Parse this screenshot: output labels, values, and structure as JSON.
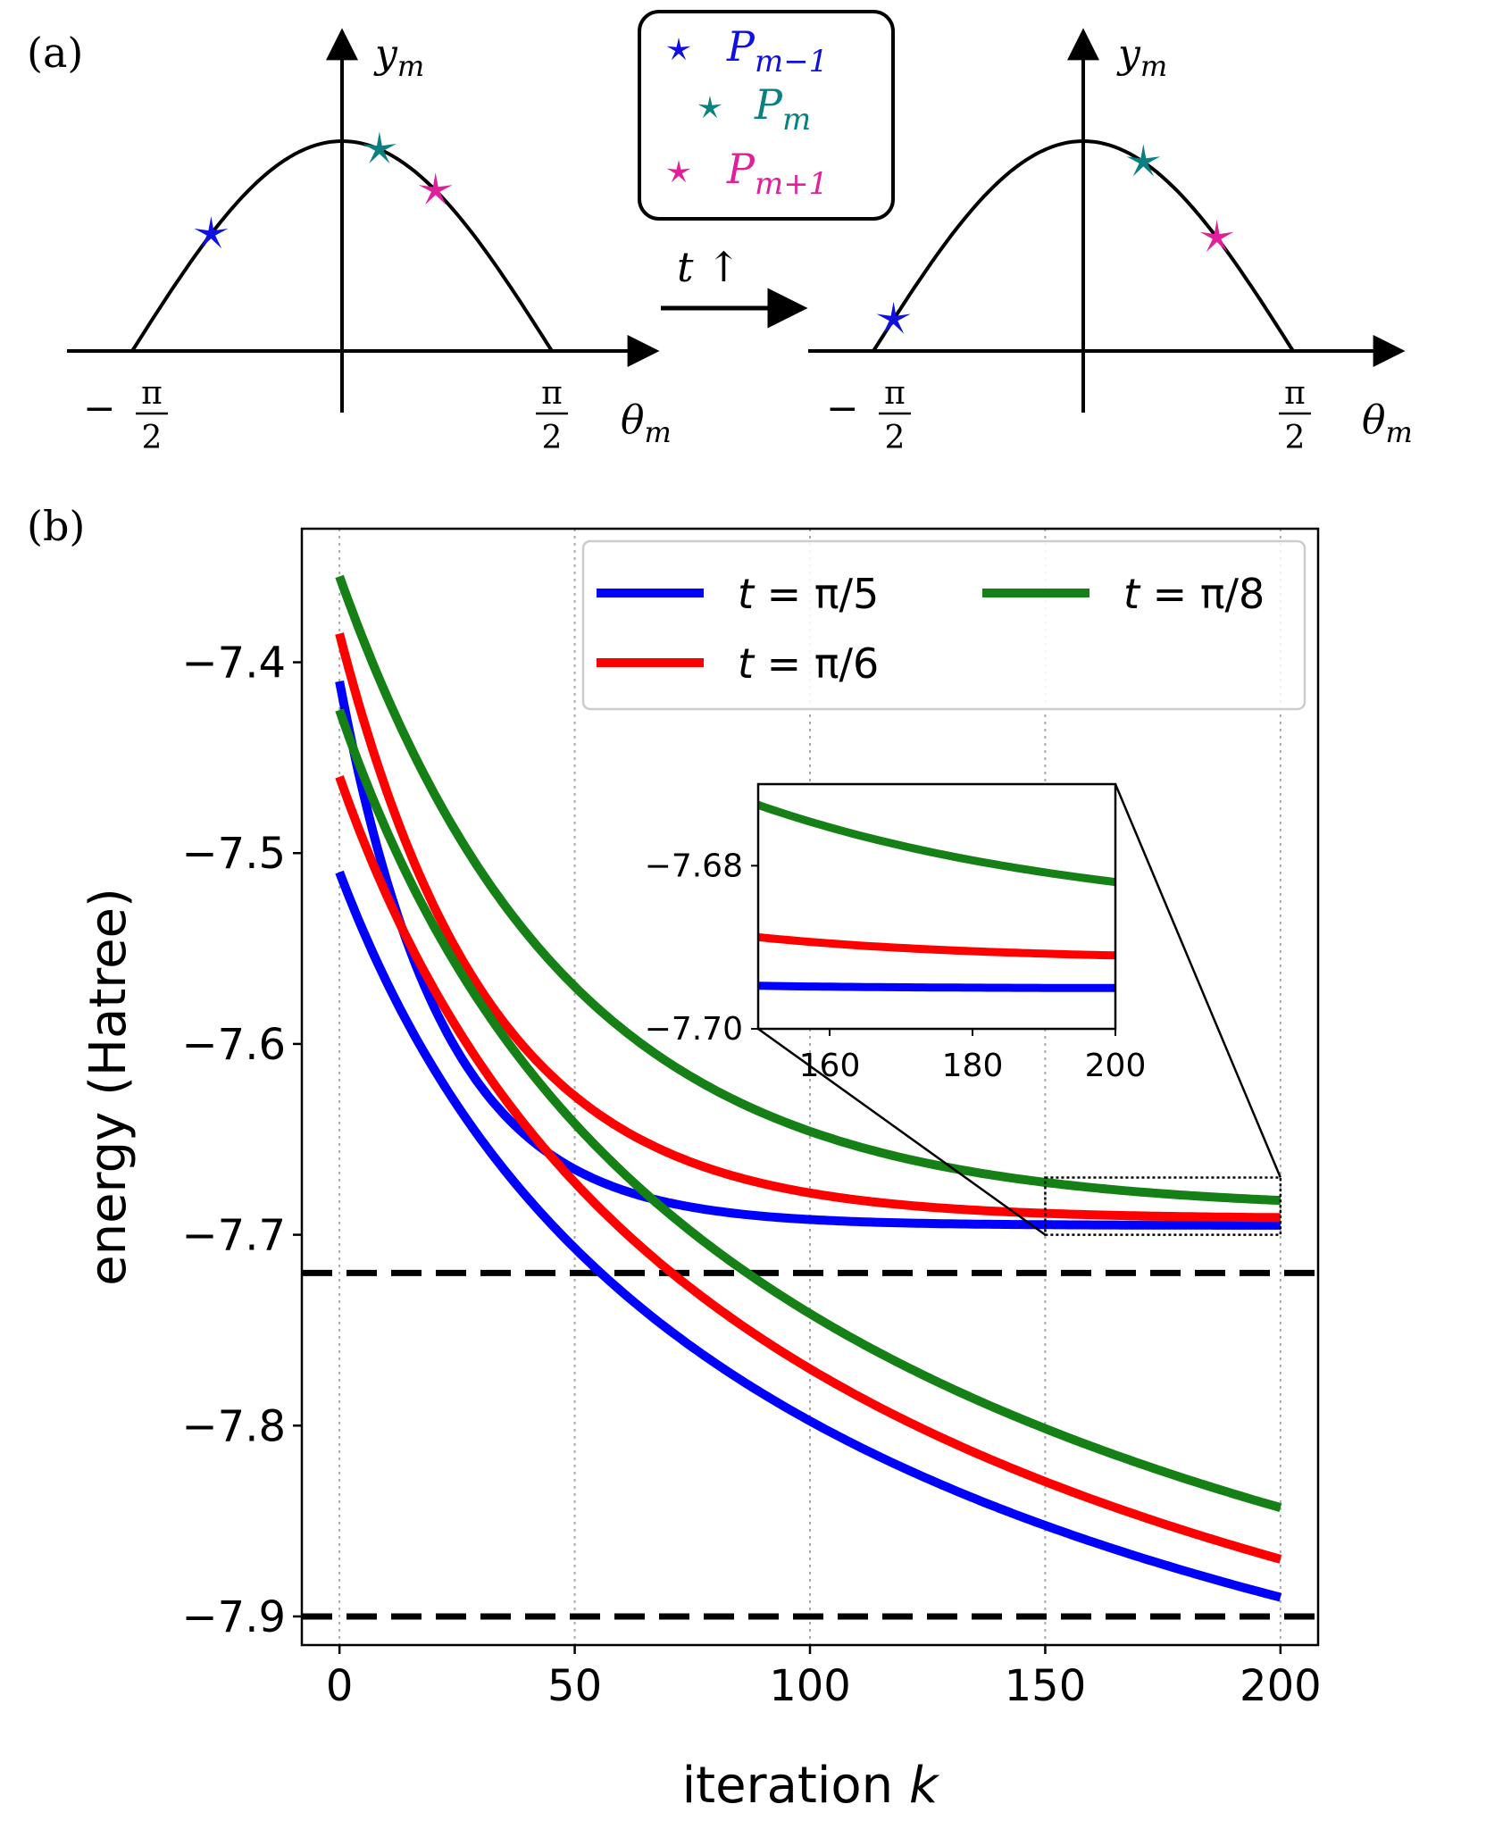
{
  "panel_a": {
    "label": "(a)",
    "y_axis_label": "y",
    "y_axis_sub": "m",
    "x_axis_label": "θ",
    "x_axis_sub": "m",
    "tick_neg": "−",
    "tick_num": "π",
    "tick_den": "2",
    "arrow_label": "t ↑",
    "legend": [
      {
        "base": "P",
        "sub": "m−1",
        "color": "#1010e0"
      },
      {
        "base": "P",
        "sub": "m",
        "color": "#0a8080"
      },
      {
        "base": "P",
        "sub": "m+1",
        "color": "#e0209a"
      }
    ],
    "left_stars": [
      {
        "theta": -0.98,
        "color": "#1010e0"
      },
      {
        "theta": 0.28,
        "color": "#0a8080"
      },
      {
        "theta": 0.7,
        "color": "#e0209a"
      }
    ],
    "right_stars": [
      {
        "theta": -1.42,
        "color": "#1010e0"
      },
      {
        "theta": 0.45,
        "color": "#0a8080"
      },
      {
        "theta": 1.0,
        "color": "#e0209a"
      }
    ]
  },
  "panel_b": {
    "label": "(b)",
    "chart_data": {
      "type": "line",
      "xlabel_main": "iteration",
      "xlabel_var": "k",
      "ylabel": "energy (Hatree)",
      "xlim": [
        -8,
        208
      ],
      "ylim": [
        -7.915,
        -7.33
      ],
      "xticks": [
        0,
        50,
        100,
        150,
        200
      ],
      "xtick_labels": [
        "0",
        "50",
        "100",
        "150",
        "200"
      ],
      "yticks": [
        -7.4,
        -7.5,
        -7.6,
        -7.7,
        -7.8,
        -7.9
      ],
      "ytick_labels": [
        "−7.4",
        "−7.5",
        "−7.6",
        "−7.7",
        "−7.8",
        "−7.9"
      ],
      "grid": "vertical dotted",
      "hlines": [
        -7.72,
        -7.9
      ],
      "series": [
        {
          "name": "t = π/5",
          "color": "#0000ff",
          "run": "upper",
          "start": -7.41,
          "end": -7.695,
          "tau": 22
        },
        {
          "name": "t = π/6",
          "color": "#ff0000",
          "run": "upper",
          "start": -7.385,
          "end": -7.691,
          "tau": 32
        },
        {
          "name": "t = π/8",
          "color": "#158015",
          "run": "upper",
          "start": -7.355,
          "end": -7.682,
          "tau": 48
        },
        {
          "name": "t = π/5",
          "color": "#0000ff",
          "run": "lower",
          "start": -7.51,
          "end": -7.89
        },
        {
          "name": "t = π/6",
          "color": "#ff0000",
          "run": "lower",
          "start": -7.46,
          "end": -7.87
        },
        {
          "name": "t = π/8",
          "color": "#158015",
          "run": "lower",
          "start": -7.425,
          "end": -7.843
        }
      ],
      "legend": [
        {
          "prefix": "t",
          "eq": " = π/5",
          "color": "#0000ff"
        },
        {
          "prefix": "t",
          "eq": " = π/8",
          "color": "#158015"
        },
        {
          "prefix": "t",
          "eq": " = π/6",
          "color": "#ff0000"
        }
      ],
      "legend_position": "top-right",
      "inset": {
        "xlim": [
          150,
          200
        ],
        "ylim": [
          -7.7,
          -7.67
        ],
        "xticks": [
          160,
          180,
          200
        ],
        "xtick_labels": [
          "160",
          "180",
          "200"
        ],
        "yticks": [
          -7.68,
          -7.7
        ],
        "ytick_labels": [
          "−7.68",
          "−7.70"
        ],
        "zoom_region": {
          "x": [
            150,
            200
          ],
          "y": [
            -7.7,
            -7.67
          ]
        }
      }
    }
  }
}
